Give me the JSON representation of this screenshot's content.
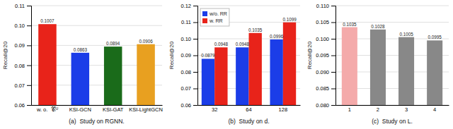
{
  "chart_data": [
    {
      "type": "bar",
      "title": "(a)  Study on RGNN.",
      "categories": [
        "w. o.  𝒞ᵢᵁ",
        "KSI-GCN",
        "KSI-GAT",
        "KSI-LightGCN"
      ],
      "values": [
        0.1007,
        0.0863,
        0.0894,
        0.0906
      ],
      "colors": [
        "#E8231A",
        "#1B3DE8",
        "#1A6B1A",
        "#E8A020"
      ],
      "ylabel": "Recall@20",
      "ylim": [
        0.06,
        0.11
      ],
      "yticks": [
        0.06,
        0.07,
        0.08,
        0.09,
        {
          "value": 0.1,
          "label": "0.10"
        },
        0.11
      ],
      "grid": true,
      "data_labels": true
    },
    {
      "type": "bar",
      "title": "(b)  Study on d.",
      "categories": [
        "32",
        "64",
        "128"
      ],
      "series": [
        {
          "name": "w/o. RR",
          "color": "#1B3DE8",
          "values": [
            0.0879,
            0.0948,
            0.0996
          ]
        },
        {
          "name": "w. RR",
          "color": "#E8231A",
          "values": [
            0.0948,
            0.1035,
            0.1099
          ]
        }
      ],
      "ylabel": "Recall@20",
      "ylim": [
        0.06,
        0.12
      ],
      "yticks": [
        0.06,
        0.07,
        0.08,
        0.09,
        {
          "value": 0.1,
          "label": "0.10"
        },
        0.11,
        0.12
      ],
      "grid": true,
      "legend": "upper-left",
      "data_labels": true
    },
    {
      "type": "bar",
      "title": "(c)  Study on L.",
      "categories": [
        "1",
        "2",
        "3",
        "4"
      ],
      "values": [
        0.1035,
        0.1028,
        0.1005,
        0.0995
      ],
      "colors": [
        "#F4AAAA",
        "#888888",
        "#888888",
        "#888888"
      ],
      "ylabel": "Recall@20",
      "ylim": [
        0.08,
        0.11
      ],
      "yticks": [
        {
          "value": 0.08,
          "label": "0.080"
        },
        0.085,
        {
          "value": 0.09,
          "label": "0.090"
        },
        0.095,
        {
          "value": 0.1,
          "label": "0.100"
        },
        0.105,
        {
          "value": 0.11,
          "label": "0.110"
        }
      ],
      "grid": true,
      "data_labels": true
    }
  ]
}
